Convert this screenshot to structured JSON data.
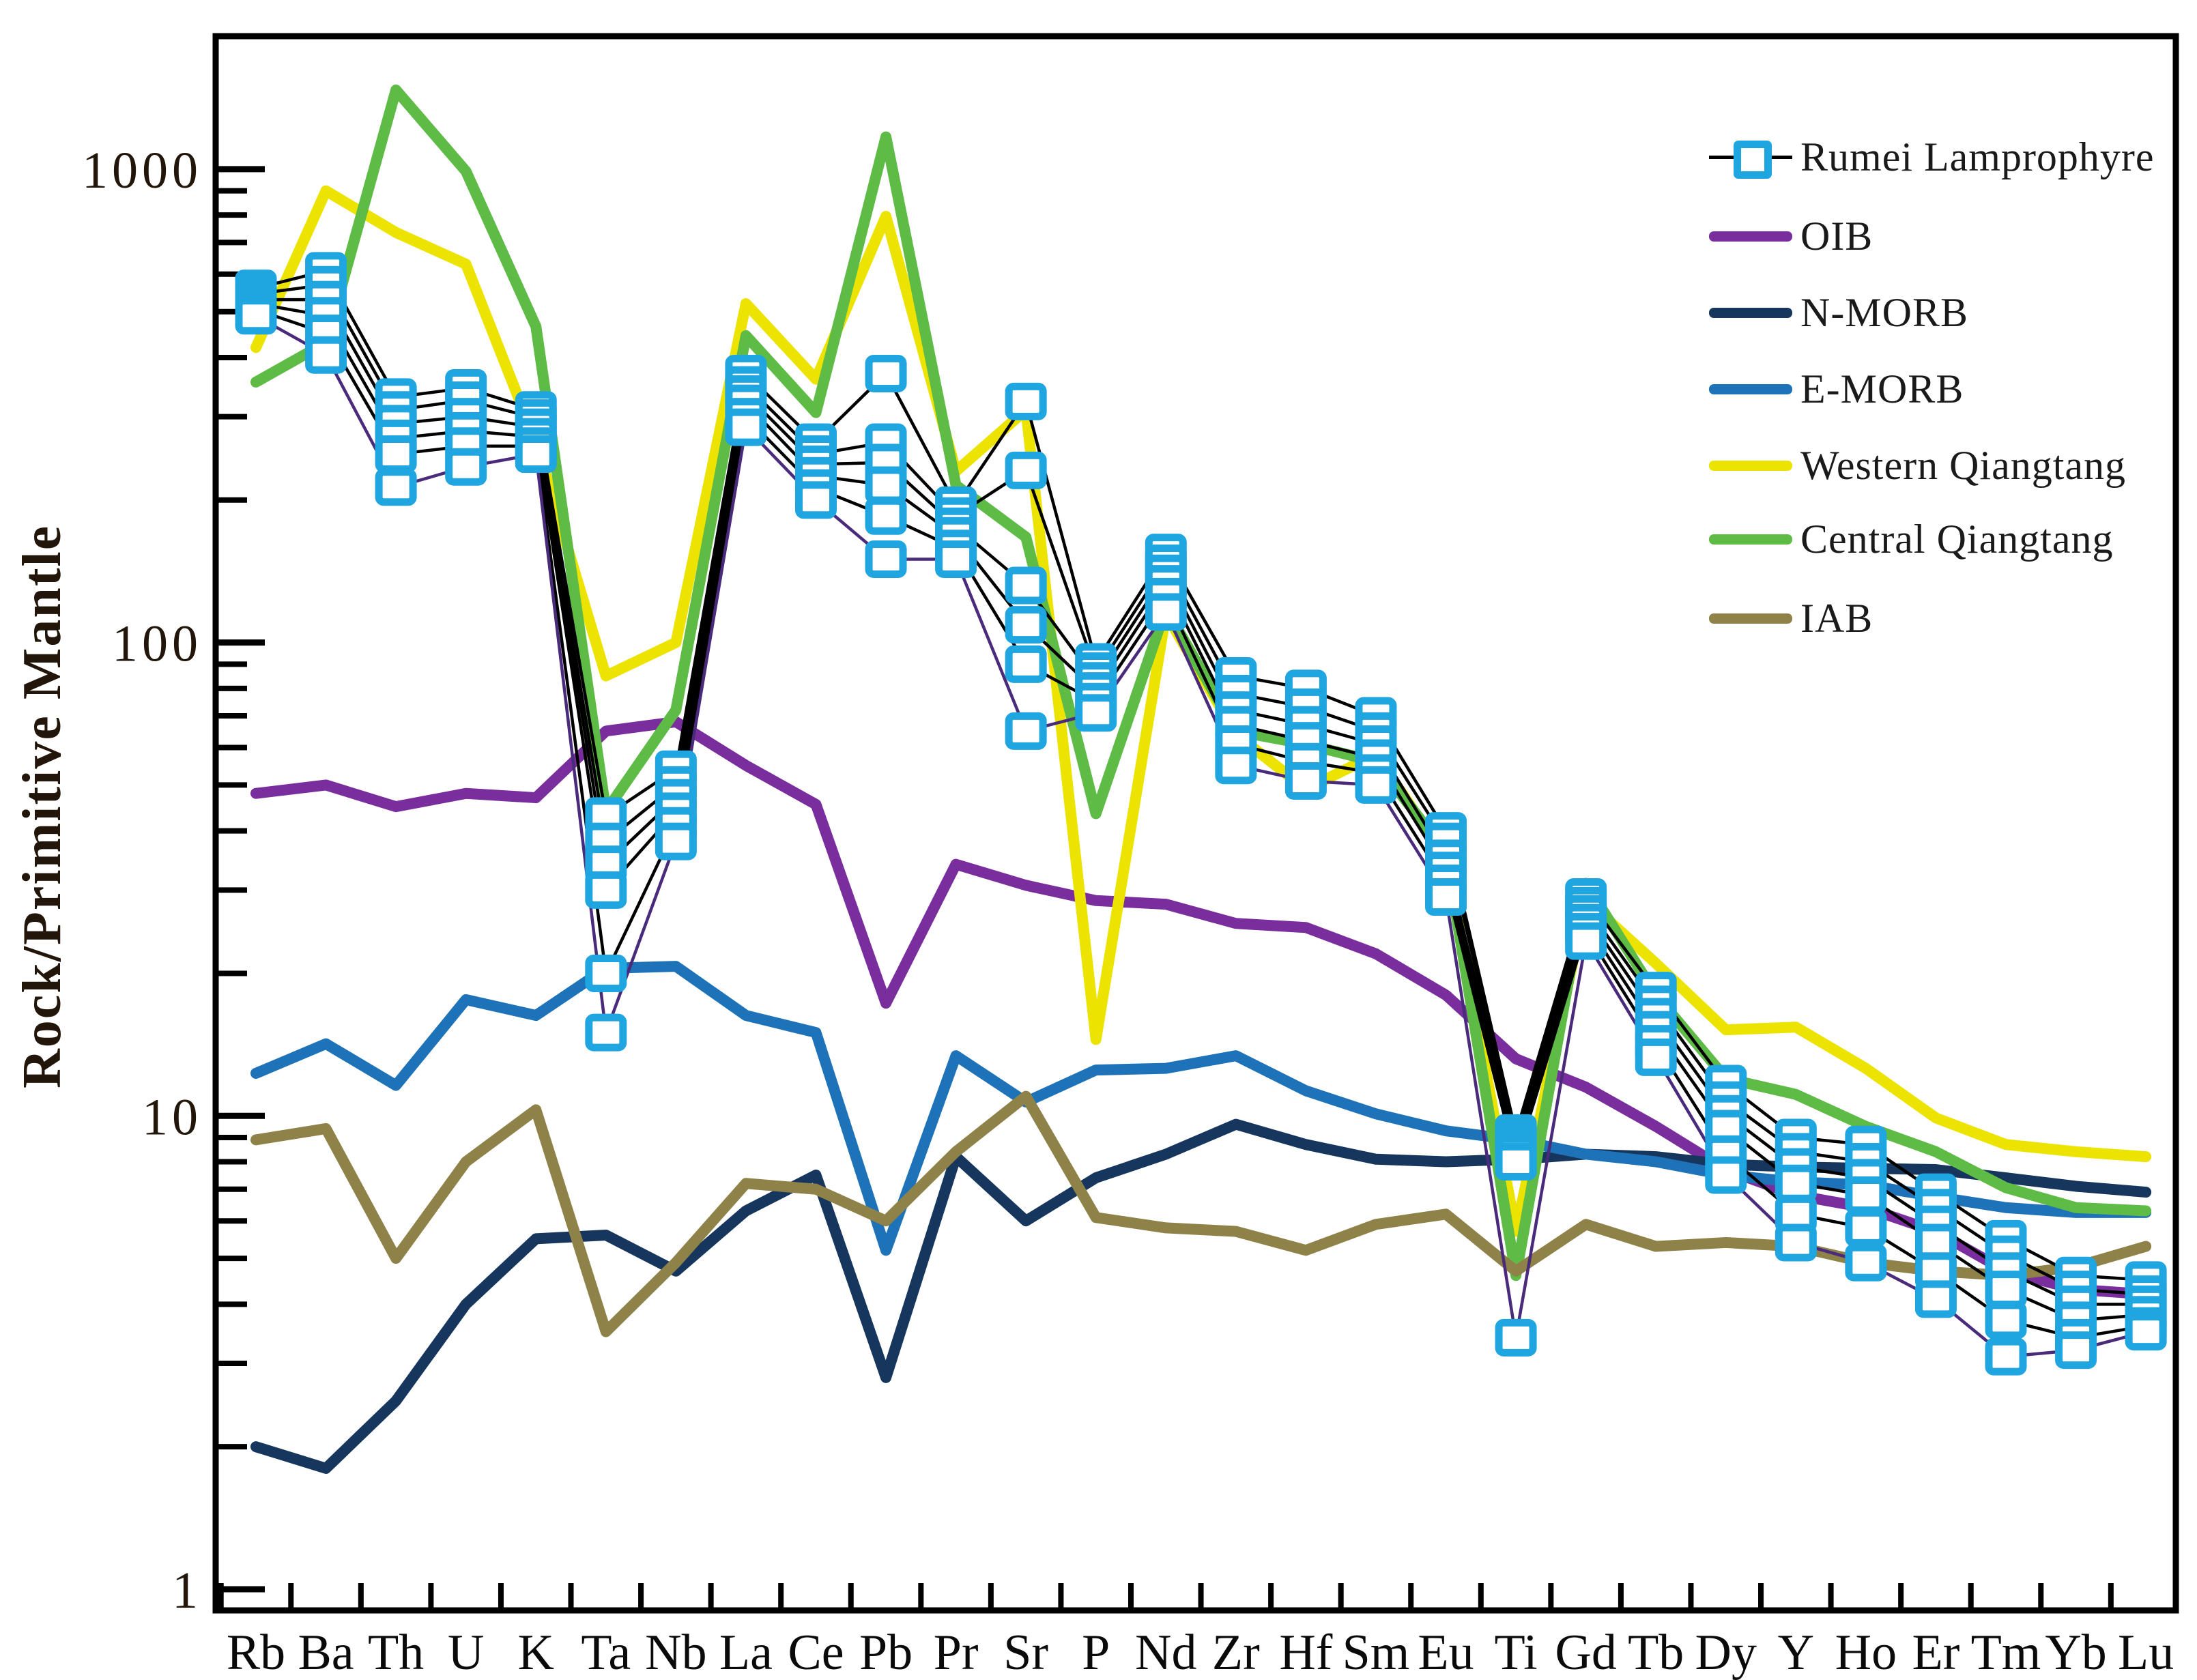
{
  "figure_title": "",
  "chart_data": {
    "type": "line",
    "title": "",
    "xlabel": "",
    "ylabel": "Rock/Primitive Mantle",
    "y_scale": "log",
    "ylim": [
      0.9,
      1950
    ],
    "y_ticks": [
      1,
      10,
      100,
      1000
    ],
    "y_tick_labels": [
      "1",
      "10",
      "100",
      "1000"
    ],
    "grid": false,
    "legend_position": "upper-right-inside",
    "categories": [
      "Rb",
      "Ba",
      "Th",
      "U",
      "K",
      "Ta",
      "Nb",
      "La",
      "Ce",
      "Pb",
      "Pr",
      "Sr",
      "P",
      "Nd",
      "Zr",
      "Hf",
      "Sm",
      "Eu",
      "Ti",
      "Gd",
      "Tb",
      "Dy",
      "Y",
      "Ho",
      "Er",
      "Tm",
      "Yb",
      "Lu"
    ],
    "series": [
      {
        "name": "Rumei Lamprophyre",
        "role": "sample-set",
        "marker": "square",
        "marker_color": "#1fa5e0",
        "marker_fill": "#ffffff",
        "sample_line_colors": [
          "#000000",
          "#000000",
          "#000000",
          "#000000",
          "#000000",
          "#4a2a7b"
        ],
        "samples": [
          [
            560,
            610,
            330,
            345,
            310,
            43,
            54,
            370,
            265,
            370,
            195,
            323,
            91,
            155,
            85,
            80,
            70,
            40,
            9.2,
            29,
            18.4,
            11.7,
            9.0,
            8.7,
            6.9,
            5.5,
            4.6,
            4.5
          ],
          [
            545,
            570,
            310,
            325,
            298,
            38,
            50,
            350,
            250,
            265,
            185,
            231,
            87,
            147,
            78,
            73,
            65,
            38,
            8.9,
            27.8,
            17.2,
            10.8,
            8.4,
            8.0,
            6.4,
            5.1,
            4.3,
            4.2
          ],
          [
            530,
            530,
            290,
            300,
            285,
            34,
            47,
            335,
            238,
            240,
            176,
            132,
            83,
            140,
            72,
            67,
            61,
            35,
            8.6,
            26.7,
            16.2,
            10.1,
            7.8,
            7.4,
            5.9,
            4.7,
            4.0,
            4.0
          ],
          [
            520,
            490,
            270,
            280,
            272,
            30,
            44,
            320,
            225,
            215,
            168,
            109,
            79,
            133,
            67,
            62,
            57,
            33,
            8.3,
            25.6,
            15.2,
            9.4,
            7.2,
            6.8,
            5.4,
            4.3,
            3.7,
            3.8
          ],
          [
            505,
            450,
            250,
            260,
            260,
            20,
            41,
            300,
            212,
            185,
            158,
            90,
            75,
            125,
            61,
            56,
            53,
            31,
            8.0,
            24.5,
            14.2,
            8.3,
            6.2,
            5.8,
            4.7,
            3.7,
            3.4,
            3.6
          ],
          [
            490,
            405,
            213,
            235,
            250,
            15,
            38,
            285,
            200,
            150,
            150,
            65,
            71,
            116,
            55,
            51,
            50,
            29,
            3.4,
            23.4,
            13.3,
            7.5,
            5.4,
            4.9,
            4.1,
            3.1,
            3.2,
            3.5
          ]
        ]
      },
      {
        "name": "OIB",
        "role": "reference",
        "color": "#7a2e9d",
        "values": [
          48,
          50,
          45,
          48,
          47,
          65,
          68,
          55,
          45.5,
          17.3,
          34,
          30.7,
          28.5,
          28,
          25.5,
          25,
          22,
          18,
          13.2,
          11.5,
          9.5,
          7.7,
          6.8,
          6.4,
          5.7,
          4.7,
          4.3,
          4.2
        ]
      },
      {
        "name": "N-MORB",
        "role": "reference",
        "color": "#17365d",
        "values": [
          2.0,
          1.8,
          2.5,
          4.0,
          5.5,
          5.6,
          4.7,
          6.3,
          7.5,
          2.8,
          8.2,
          6.0,
          7.4,
          8.3,
          9.6,
          8.7,
          8.1,
          8.0,
          8.1,
          8.3,
          8.2,
          7.9,
          7.8,
          7.75,
          7.7,
          7.4,
          7.1,
          6.9
        ]
      },
      {
        "name": "E-MORB",
        "role": "reference",
        "color": "#1e72b8",
        "values": [
          12.3,
          14.2,
          11.6,
          17.6,
          16.3,
          20.5,
          20.7,
          16.3,
          15.0,
          5.2,
          13.4,
          10.7,
          12.5,
          12.6,
          13.4,
          11.3,
          10.1,
          9.3,
          8.9,
          8.3,
          8.0,
          7.5,
          7.25,
          7.15,
          6.75,
          6.4,
          6.25,
          6.25
        ]
      },
      {
        "name": "Western Qiangtang",
        "role": "reference",
        "color": "#ece400",
        "values": [
          420,
          900,
          735,
          630,
          265,
          85,
          100,
          520,
          360,
          795,
          230,
          310,
          14.5,
          115,
          64,
          49,
          58,
          35,
          5.7,
          28.6,
          21,
          15.2,
          15.4,
          12.6,
          9.9,
          8.7,
          8.4,
          8.2
        ]
      },
      {
        "name": "Central Qiangtang",
        "role": "reference",
        "color": "#5dbb46",
        "values": [
          355,
          430,
          1470,
          990,
          465,
          44,
          72,
          445,
          306,
          1170,
          215,
          167,
          43.5,
          118,
          65,
          61,
          56,
          36,
          4.6,
          31,
          18,
          12,
          11.1,
          9.5,
          8.4,
          7.05,
          6.4,
          6.3
        ]
      },
      {
        "name": "IAB",
        "role": "reference",
        "color": "#8e8249",
        "values": [
          8.9,
          9.4,
          5.0,
          8.0,
          10.3,
          3.5,
          4.9,
          7.2,
          7.0,
          6.0,
          8.4,
          11.0,
          6.1,
          5.8,
          5.7,
          5.2,
          5.9,
          6.2,
          4.7,
          5.9,
          5.3,
          5.4,
          5.3,
          4.9,
          4.7,
          4.6,
          4.8,
          5.3
        ]
      }
    ]
  }
}
